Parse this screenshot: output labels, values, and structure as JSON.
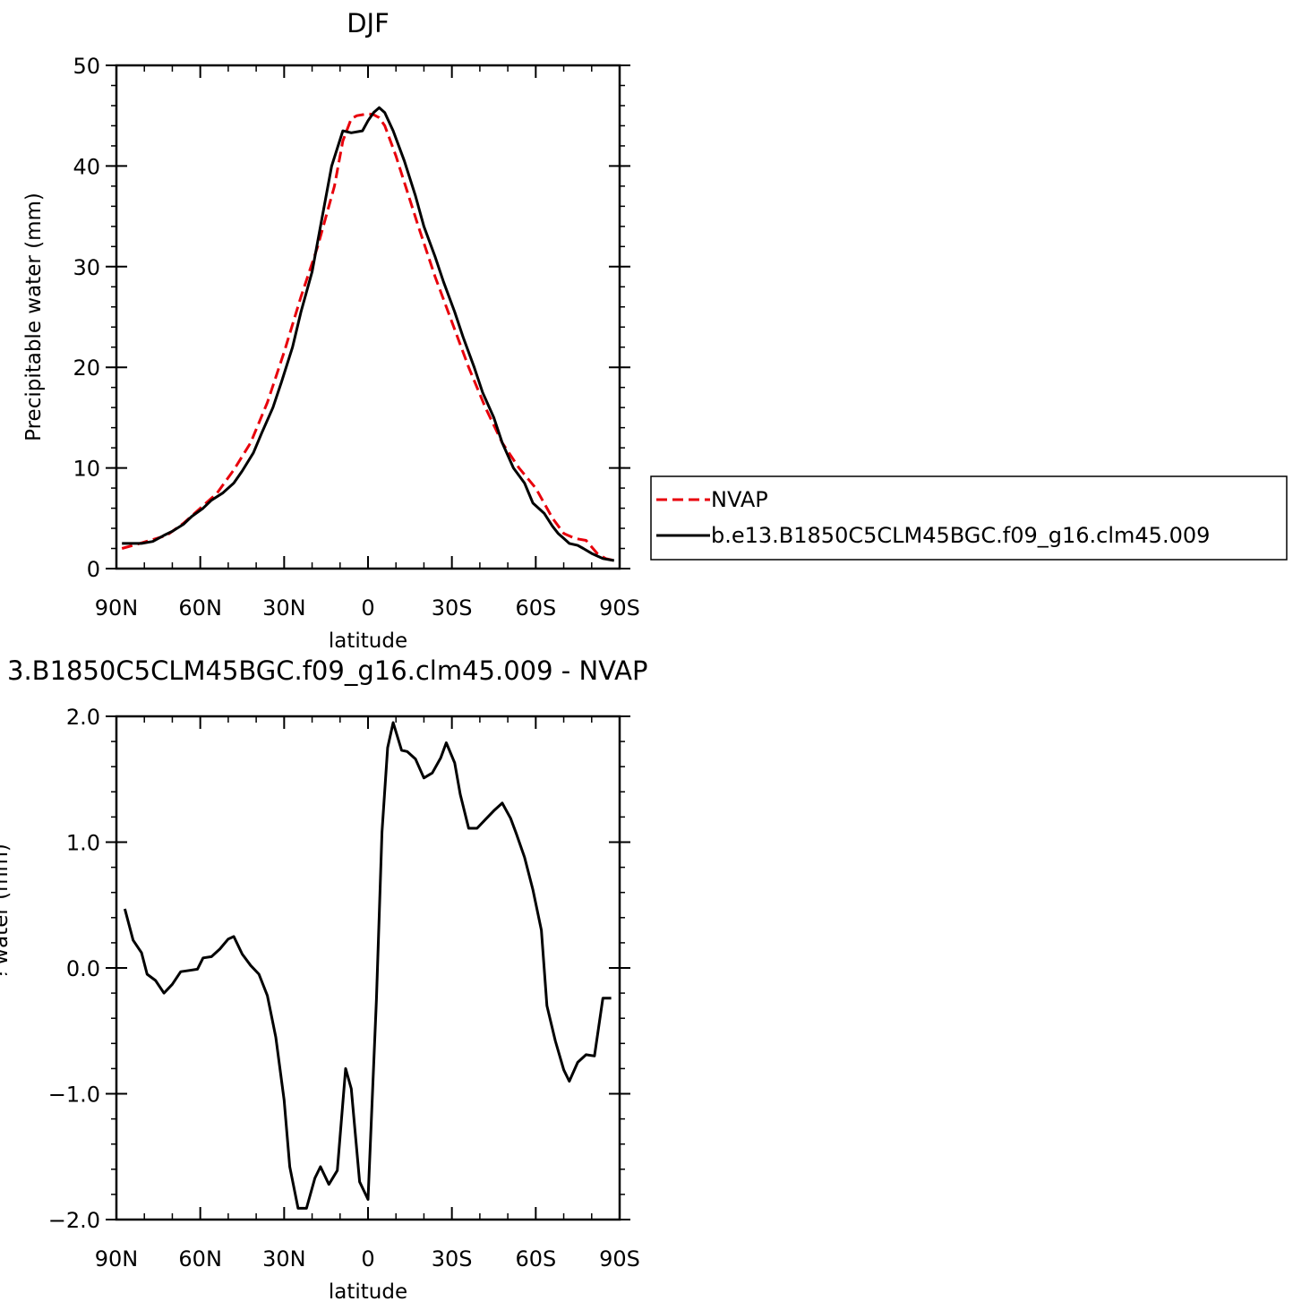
{
  "colors": {
    "nvap": "#e8000b",
    "model": "#000000"
  },
  "chart_data": [
    {
      "type": "line",
      "title": "DJF",
      "xlabel": "latitude",
      "ylabel": "Precipitable water (mm)",
      "xlim": [
        90,
        -90
      ],
      "ylim": [
        0,
        50
      ],
      "xticks": [
        {
          "value": 90,
          "label": "90N"
        },
        {
          "value": 60,
          "label": "60N"
        },
        {
          "value": 30,
          "label": "30N"
        },
        {
          "value": 0,
          "label": "0"
        },
        {
          "value": -30,
          "label": "30S"
        },
        {
          "value": -60,
          "label": "60S"
        },
        {
          "value": -90,
          "label": "90S"
        }
      ],
      "yticks": [
        {
          "value": 0,
          "label": "0"
        },
        {
          "value": 10,
          "label": "10"
        },
        {
          "value": 20,
          "label": "20"
        },
        {
          "value": 30,
          "label": "30"
        },
        {
          "value": 40,
          "label": "40"
        },
        {
          "value": 50,
          "label": "50"
        }
      ],
      "legend": {
        "position": "right",
        "entries": [
          {
            "name": "NVAP",
            "style": "dashed",
            "color": "#e8000b"
          },
          {
            "name": "b.e13.B1850C5CLM45BGC.f09_g16.clm45.009",
            "style": "solid",
            "color": "#000000"
          }
        ]
      },
      "series": [
        {
          "name": "NVAP",
          "style": "dashed",
          "color": "#e8000b",
          "x": [
            88,
            84,
            78,
            72,
            66,
            60,
            54,
            48,
            42,
            36,
            30,
            24,
            18,
            12,
            9,
            6,
            4,
            2,
            0,
            -2,
            -4,
            -6,
            -8,
            -10,
            -14,
            -18,
            -24,
            -30,
            -36,
            -42,
            -48,
            -54,
            -60,
            -66,
            -70,
            -74,
            -78,
            -82,
            -85,
            -88
          ],
          "y": [
            2.0,
            2.3,
            2.8,
            3.3,
            4.5,
            6.0,
            7.5,
            9.8,
            12.5,
            16.5,
            21.5,
            27.0,
            32.0,
            38.0,
            42.5,
            44.7,
            45.0,
            45.1,
            45.2,
            45.1,
            44.8,
            44.0,
            42.5,
            41.0,
            37.5,
            34.0,
            29.0,
            24.5,
            20.0,
            16.0,
            12.5,
            10.0,
            8.0,
            5.0,
            3.5,
            3.0,
            2.8,
            1.5,
            1.0,
            0.8
          ]
        },
        {
          "name": "b.e13.B1850C5CLM45BGC.f09_g16.clm45.009",
          "style": "solid",
          "color": "#000000",
          "x": [
            88,
            81,
            77,
            73,
            70,
            66,
            63,
            59,
            56,
            52,
            48,
            45,
            41,
            38,
            34,
            31,
            27,
            24,
            20,
            17,
            13,
            9,
            6,
            2,
            0,
            -2,
            -4,
            -6,
            -9,
            -13,
            -17,
            -20,
            -24,
            -27,
            -31,
            -34,
            -38,
            -41,
            -45,
            -48,
            -52,
            -56,
            -59,
            -63,
            -66,
            -68,
            -70,
            -72,
            -75,
            -77,
            -80,
            -84,
            -88
          ],
          "y": [
            2.5,
            2.5,
            2.7,
            3.3,
            3.7,
            4.4,
            5.2,
            6.0,
            6.8,
            7.5,
            8.5,
            9.7,
            11.5,
            13.5,
            16.0,
            18.5,
            22.0,
            25.5,
            29.5,
            34.0,
            40.0,
            43.5,
            43.3,
            43.5,
            44.5,
            45.3,
            45.8,
            45.3,
            43.5,
            40.5,
            37.0,
            34.0,
            31.0,
            28.5,
            25.5,
            23.0,
            20.0,
            17.5,
            15.0,
            12.5,
            10.0,
            8.5,
            6.5,
            5.5,
            4.2,
            3.5,
            3.0,
            2.5,
            2.3,
            2.0,
            1.5,
            1.0,
            0.8
          ]
        }
      ]
    },
    {
      "type": "line",
      "title": "3.B1850C5CLM45BGC.f09_g16.clm45.009 - NVAP",
      "xlabel": "latitude",
      "ylabel": "Precipitable water (mm)",
      "xlim": [
        90,
        -90
      ],
      "ylim": [
        -2,
        2
      ],
      "xticks": [
        {
          "value": 90,
          "label": "90N"
        },
        {
          "value": 60,
          "label": "60N"
        },
        {
          "value": 30,
          "label": "30N"
        },
        {
          "value": 0,
          "label": "0"
        },
        {
          "value": -30,
          "label": "30S"
        },
        {
          "value": -60,
          "label": "60S"
        },
        {
          "value": -90,
          "label": "90S"
        }
      ],
      "yticks": [
        {
          "value": -2,
          "label": "−2.0"
        },
        {
          "value": -1,
          "label": "−1.0"
        },
        {
          "value": 0,
          "label": "0.0"
        },
        {
          "value": 1,
          "label": "1.0"
        },
        {
          "value": 2,
          "label": "2.0"
        }
      ],
      "series": [
        {
          "name": "",
          "style": "solid",
          "color": "#000000",
          "x": [
            87,
            84,
            81,
            79,
            76,
            73,
            70,
            67,
            64,
            61,
            59,
            56,
            53,
            50,
            48,
            45,
            42,
            39,
            36,
            33,
            30,
            28,
            25,
            22,
            19,
            17,
            14,
            11,
            8,
            6,
            3,
            0,
            -3,
            -5,
            -7,
            -9,
            -12,
            -14,
            -17,
            -20,
            -23,
            -26,
            -28,
            -31,
            -33,
            -36,
            -39,
            -42,
            -45,
            -48,
            -51,
            -53,
            -56,
            -59,
            -62,
            -64,
            -67,
            -70,
            -72,
            -75,
            -78,
            -81,
            -84,
            -87
          ],
          "y": [
            0.47,
            0.22,
            0.12,
            -0.05,
            -0.1,
            -0.2,
            -0.13,
            -0.03,
            -0.02,
            -0.01,
            0.08,
            0.09,
            0.15,
            0.23,
            0.25,
            0.11,
            0.02,
            -0.05,
            -0.22,
            -0.55,
            -1.05,
            -1.58,
            -1.91,
            -1.91,
            -1.67,
            -1.58,
            -1.72,
            -1.61,
            -0.8,
            -0.96,
            -1.7,
            -1.84,
            -0.25,
            1.08,
            1.75,
            1.95,
            1.73,
            1.72,
            1.66,
            1.51,
            1.55,
            1.67,
            1.79,
            1.63,
            1.38,
            1.11,
            1.11,
            1.18,
            1.25,
            1.31,
            1.19,
            1.07,
            0.88,
            0.62,
            0.3,
            -0.3,
            -0.58,
            -0.81,
            -0.9,
            -0.75,
            -0.69,
            -0.7,
            -0.24,
            -0.24
          ]
        }
      ]
    }
  ]
}
